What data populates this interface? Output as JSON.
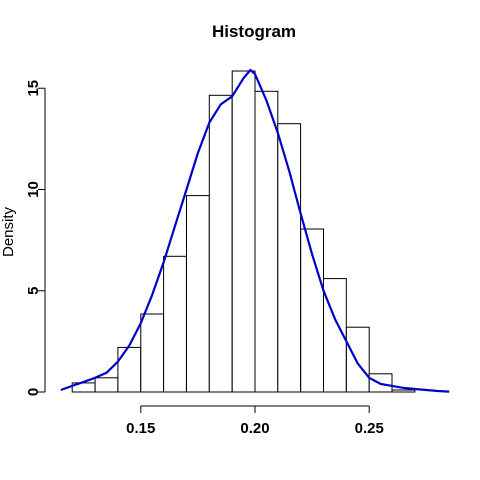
{
  "chart_data": {
    "type": "bar",
    "title": "Histogram",
    "xlabel": "",
    "ylabel": "Density",
    "x_ticks": [
      0.15,
      0.2,
      0.25
    ],
    "x_tick_labels": [
      "0.15",
      "0.20",
      "0.25"
    ],
    "y_ticks": [
      0,
      5,
      10,
      15
    ],
    "y_tick_labels": [
      "0",
      "5",
      "10",
      "15"
    ],
    "xlim": [
      0.1142,
      0.2858
    ],
    "ylim": [
      0,
      15.9
    ],
    "bins": [
      {
        "x0": 0.12,
        "x1": 0.13,
        "density": 0.45
      },
      {
        "x0": 0.13,
        "x1": 0.14,
        "density": 0.7
      },
      {
        "x0": 0.14,
        "x1": 0.15,
        "density": 2.2
      },
      {
        "x0": 0.15,
        "x1": 0.16,
        "density": 3.85
      },
      {
        "x0": 0.16,
        "x1": 0.17,
        "density": 6.7
      },
      {
        "x0": 0.17,
        "x1": 0.18,
        "density": 9.7
      },
      {
        "x0": 0.18,
        "x1": 0.19,
        "density": 14.65
      },
      {
        "x0": 0.19,
        "x1": 0.2,
        "density": 15.85
      },
      {
        "x0": 0.2,
        "x1": 0.21,
        "density": 14.85
      },
      {
        "x0": 0.21,
        "x1": 0.22,
        "density": 13.25
      },
      {
        "x0": 0.22,
        "x1": 0.23,
        "density": 8.05
      },
      {
        "x0": 0.23,
        "x1": 0.24,
        "density": 5.6
      },
      {
        "x0": 0.24,
        "x1": 0.25,
        "density": 3.2
      },
      {
        "x0": 0.25,
        "x1": 0.26,
        "density": 0.9
      },
      {
        "x0": 0.26,
        "x1": 0.27,
        "density": 0.1
      }
    ],
    "density_curve": {
      "color": "#0000cd",
      "x": [
        0.115,
        0.12,
        0.125,
        0.13,
        0.135,
        0.14,
        0.145,
        0.15,
        0.155,
        0.16,
        0.165,
        0.17,
        0.175,
        0.18,
        0.185,
        0.19,
        0.195,
        0.198,
        0.2,
        0.205,
        0.21,
        0.215,
        0.22,
        0.225,
        0.23,
        0.235,
        0.24,
        0.245,
        0.25,
        0.255,
        0.26,
        0.265,
        0.27,
        0.275,
        0.28,
        0.285
      ],
      "y": [
        0.1,
        0.3,
        0.5,
        0.7,
        0.95,
        1.5,
        2.3,
        3.4,
        4.8,
        6.4,
        8.2,
        10.0,
        11.8,
        13.3,
        14.2,
        14.6,
        15.5,
        15.9,
        15.7,
        14.4,
        12.8,
        10.9,
        8.8,
        6.8,
        5.0,
        3.6,
        2.5,
        1.4,
        0.7,
        0.4,
        0.3,
        0.2,
        0.15,
        0.1,
        0.05,
        0.02
      ]
    }
  }
}
